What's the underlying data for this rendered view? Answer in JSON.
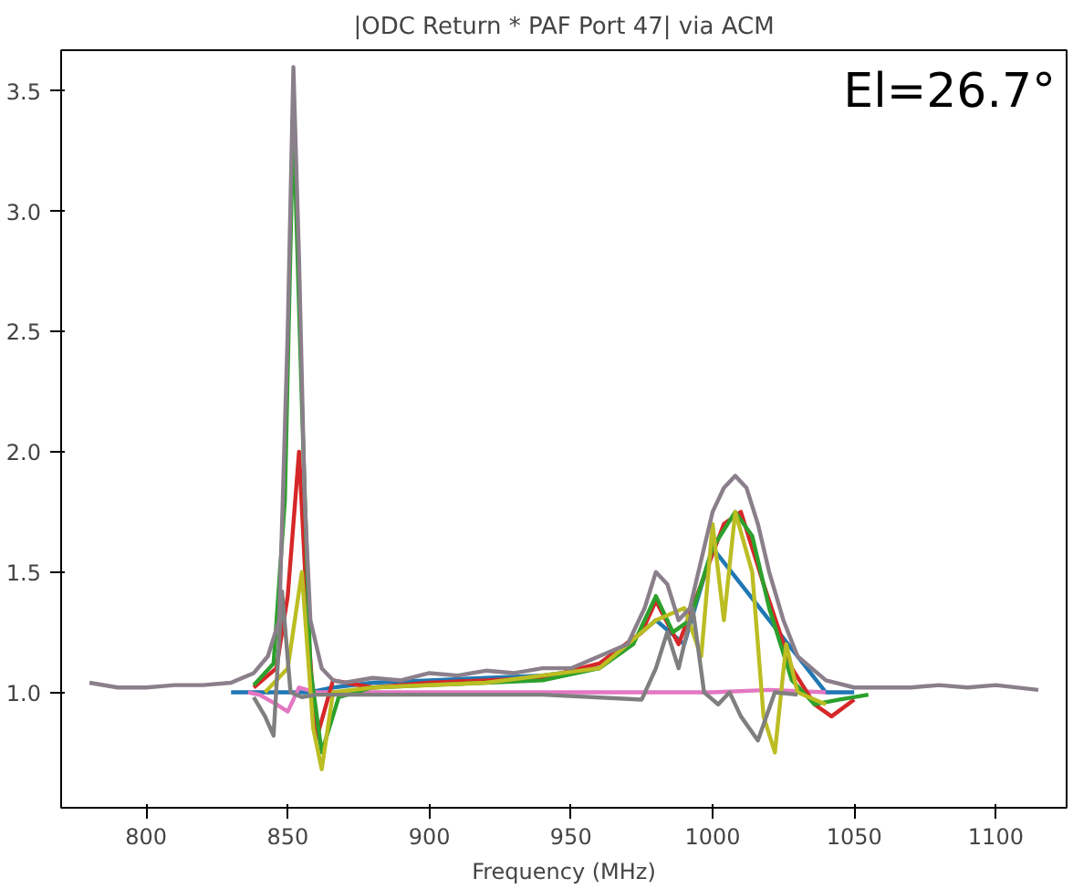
{
  "chart_data": {
    "type": "line",
    "title": "|ODC Return * PAF Port 47| via ACM",
    "xlabel": "Frequency (MHz)",
    "annotations": [
      "El=26.7°"
    ],
    "xlim": [
      770,
      1125
    ],
    "ylim": [
      0.52,
      3.67
    ],
    "xticks": [
      800,
      850,
      900,
      950,
      1000,
      1050,
      1100
    ],
    "yticks": [
      {
        "value": 1.0,
        "label": "1.0"
      },
      {
        "value": 1.5,
        "label": "1.5"
      },
      {
        "value": 2.0,
        "label": "2.0"
      },
      {
        "value": 2.5,
        "label": "2.5"
      },
      {
        "value": 3.0,
        "label": "3.0"
      },
      {
        "value": 3.5,
        "label": "3.5"
      }
    ],
    "grid": false,
    "line_style": "solid",
    "marker": "none",
    "series": [
      {
        "color": "#1f77b4",
        "x": [
          830,
          840,
          848,
          852,
          858,
          866,
          880,
          900,
          920,
          940,
          960,
          980,
          990,
          1000,
          1020,
          1040,
          1050
        ],
        "values": [
          1.0,
          1.0,
          1.0,
          1.0,
          1.0,
          1.02,
          1.04,
          1.05,
          1.06,
          1.07,
          1.1,
          1.3,
          1.2,
          1.6,
          1.3,
          1.0,
          1.0
        ]
      },
      {
        "color": "#e377c2",
        "x": [
          836,
          840,
          846,
          850,
          854,
          860,
          880,
          900,
          940,
          980,
          1000,
          1020,
          1040
        ],
        "values": [
          1.0,
          0.99,
          0.95,
          0.92,
          1.02,
          1.0,
          1.0,
          1.0,
          1.0,
          1.0,
          1.0,
          1.01,
          1.0
        ]
      },
      {
        "color": "#d62728",
        "x": [
          838,
          846,
          850,
          854,
          857,
          860,
          866,
          880,
          900,
          920,
          940,
          960,
          975,
          980,
          988,
          996,
          1004,
          1010,
          1018,
          1028,
          1036,
          1042,
          1050
        ],
        "values": [
          1.02,
          1.1,
          1.4,
          2.0,
          1.3,
          0.8,
          1.05,
          1.02,
          1.04,
          1.05,
          1.06,
          1.12,
          1.25,
          1.38,
          1.2,
          1.45,
          1.7,
          1.75,
          1.45,
          1.1,
          0.95,
          0.9,
          0.97
        ]
      },
      {
        "color": "#2ca02c",
        "x": [
          838,
          845,
          849,
          852,
          855,
          858,
          862,
          868,
          880,
          900,
          920,
          940,
          960,
          972,
          980,
          986,
          992,
          1000,
          1008,
          1014,
          1020,
          1028,
          1036,
          1045,
          1055
        ],
        "values": [
          1.03,
          1.12,
          1.8,
          3.4,
          2.2,
          1.1,
          0.75,
          0.98,
          1.02,
          1.03,
          1.04,
          1.05,
          1.1,
          1.2,
          1.4,
          1.25,
          1.3,
          1.6,
          1.75,
          1.65,
          1.35,
          1.05,
          0.95,
          0.97,
          0.99
        ]
      },
      {
        "color": "#bcbd22",
        "x": [
          842,
          850,
          855,
          859,
          862,
          866,
          880,
          920,
          960,
          980,
          990,
          996,
          1000,
          1004,
          1008,
          1014,
          1018,
          1022,
          1026,
          1030,
          1040
        ],
        "values": [
          1.0,
          1.1,
          1.5,
          0.85,
          0.68,
          1.0,
          1.02,
          1.04,
          1.1,
          1.3,
          1.35,
          1.15,
          1.7,
          1.3,
          1.75,
          1.5,
          0.9,
          0.75,
          1.2,
          1.0,
          0.95
        ]
      },
      {
        "color": "#7f7f7f",
        "x": [
          838,
          842,
          845,
          848,
          851,
          855,
          860,
          870,
          900,
          940,
          975,
          980,
          984,
          988,
          993,
          997,
          1002,
          1006,
          1010,
          1016,
          1022,
          1030
        ],
        "values": [
          0.98,
          0.9,
          0.82,
          1.42,
          1.0,
          0.98,
          0.99,
          0.99,
          0.99,
          0.99,
          0.97,
          1.1,
          1.25,
          1.1,
          1.35,
          1.0,
          0.95,
          1.0,
          0.9,
          0.8,
          1.0,
          0.99
        ]
      },
      {
        "color": "#8a7f8a",
        "x": [
          780,
          790,
          800,
          810,
          820,
          830,
          838,
          843,
          847,
          850,
          852,
          854,
          856,
          858,
          862,
          866,
          870,
          880,
          890,
          900,
          910,
          920,
          930,
          940,
          950,
          960,
          970,
          976,
          980,
          984,
          988,
          992,
          996,
          1000,
          1004,
          1008,
          1012,
          1016,
          1020,
          1025,
          1030,
          1040,
          1050,
          1060,
          1070,
          1080,
          1090,
          1100,
          1115
        ],
        "values": [
          1.04,
          1.02,
          1.02,
          1.03,
          1.03,
          1.04,
          1.08,
          1.15,
          1.3,
          2.5,
          3.6,
          2.8,
          1.8,
          1.3,
          1.1,
          1.05,
          1.04,
          1.06,
          1.05,
          1.08,
          1.07,
          1.09,
          1.08,
          1.1,
          1.1,
          1.15,
          1.2,
          1.35,
          1.5,
          1.45,
          1.3,
          1.35,
          1.55,
          1.75,
          1.85,
          1.9,
          1.85,
          1.7,
          1.5,
          1.3,
          1.15,
          1.05,
          1.02,
          1.02,
          1.02,
          1.03,
          1.02,
          1.03,
          1.01
        ]
      }
    ]
  }
}
